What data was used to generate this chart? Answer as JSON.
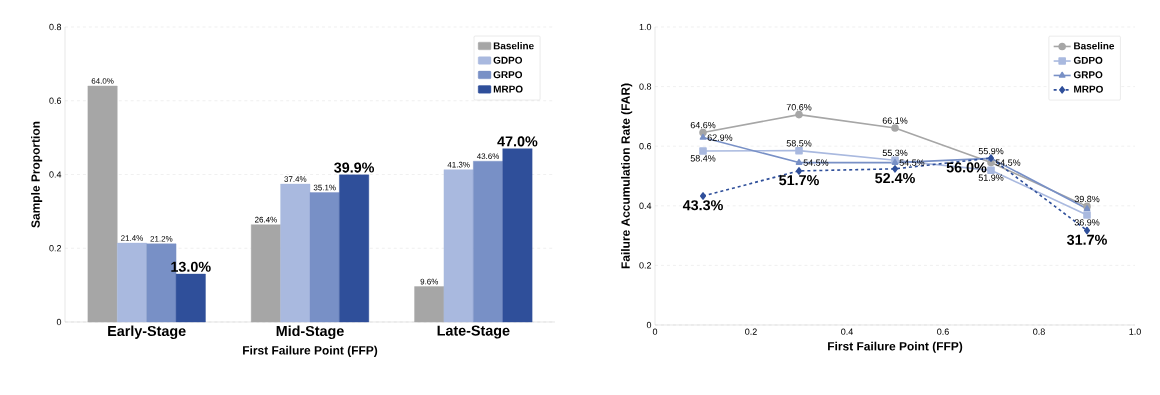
{
  "chart_data": [
    {
      "type": "bar",
      "xlabel": "First Failure Point (FFP)",
      "ylabel": "Sample Proportion",
      "categories": [
        "Early-Stage",
        "Mid-Stage",
        "Late-Stage"
      ],
      "series": [
        {
          "name": "Baseline",
          "color": "#a6a6a6",
          "values": [
            0.64,
            0.264,
            0.096
          ],
          "value_labels": [
            "64.0%",
            "26.4%",
            "9.6%"
          ]
        },
        {
          "name": "GDPO",
          "color": "#a9b9df",
          "values": [
            0.214,
            0.374,
            0.413
          ],
          "value_labels": [
            "21.4%",
            "37.4%",
            "41.3%"
          ]
        },
        {
          "name": "GRPO",
          "color": "#7890c6",
          "values": [
            0.212,
            0.351,
            0.436
          ],
          "value_labels": [
            "21.2%",
            "35.1%",
            "43.6%"
          ]
        },
        {
          "name": "MRPO",
          "color": "#2f4f9a",
          "values": [
            0.13,
            0.399,
            0.47
          ],
          "value_labels": [
            "13.0%",
            "39.9%",
            "47.0%"
          ]
        }
      ],
      "ylim": [
        0,
        0.8
      ],
      "yticks": [
        0,
        0.2,
        0.4,
        0.6,
        0.8
      ],
      "grid": "y",
      "legend": "top right"
    },
    {
      "type": "line",
      "xlabel": "First Failure Point (FFP)",
      "ylabel": "Failure Accumulation Rate (FAR)",
      "x": [
        0.1,
        0.3,
        0.5,
        0.7,
        0.9
      ],
      "series": [
        {
          "name": "Baseline",
          "color": "#a6a6a6",
          "marker": "circle",
          "line_style": "solid",
          "values": [
            0.646,
            0.706,
            0.661,
            0.545,
            0.398
          ],
          "value_labels": [
            "64.6%",
            "70.6%",
            "66.1%",
            "54.5%",
            "39.8%"
          ]
        },
        {
          "name": "GDPO",
          "color": "#a9b9df",
          "marker": "square",
          "line_style": "solid",
          "values": [
            0.584,
            0.585,
            0.553,
            0.519,
            0.369
          ],
          "value_labels": [
            "58.4%",
            "58.5%",
            "55.3%",
            "51.9%",
            "36.9%"
          ]
        },
        {
          "name": "GRPO",
          "color": "#7890c6",
          "marker": "triangle",
          "line_style": "solid",
          "values": [
            0.629,
            0.545,
            0.545,
            0.559,
            0.39
          ],
          "value_labels": [
            "62.9%",
            "54.5%",
            "54.5%",
            "55.9%",
            null
          ]
        },
        {
          "name": "MRPO",
          "color": "#2f4f9a",
          "marker": "diamond",
          "line_style": "dashed",
          "values": [
            0.433,
            0.517,
            0.524,
            0.56,
            0.317
          ],
          "value_labels": [
            "43.3%",
            "51.7%",
            "52.4%",
            "56.0%",
            "31.7%"
          ]
        }
      ],
      "xlim": [
        0,
        1
      ],
      "xticks": [
        0,
        0.2,
        0.4,
        0.6,
        0.8,
        {
          "value": 1,
          "label": "1.0"
        }
      ],
      "ylim": [
        0,
        1
      ],
      "yticks": [
        0,
        0.2,
        0.4,
        0.6,
        0.8,
        {
          "value": 1,
          "label": "1.0"
        }
      ],
      "grid": "y",
      "legend": "top right"
    }
  ]
}
